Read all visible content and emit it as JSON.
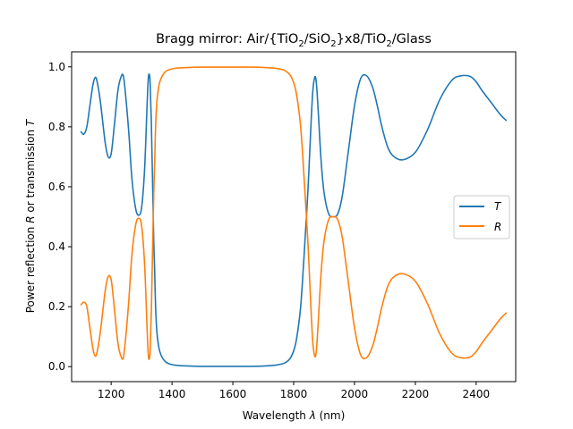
{
  "chart_data": {
    "type": "line",
    "title": {
      "prefix": "Bragg mirror: Air/{TiO",
      "sub1": "2",
      "mid1": "/SiO",
      "sub2": "2",
      "mid2": "}x8/TiO",
      "sub3": "2",
      "suffix": "/Glass"
    },
    "xlabel": {
      "before": "Wavelength ",
      "sym": "λ",
      "after": " (nm)"
    },
    "ylabel": {
      "a": "Power reflection ",
      "sym1": "R",
      "b": " or transmission ",
      "sym2": "T"
    },
    "xlim": [
      1070,
      2530
    ],
    "ylim": [
      -0.05,
      1.05
    ],
    "xticks": [
      1200,
      1400,
      1600,
      1800,
      2000,
      2200,
      2400
    ],
    "xtick_labels": [
      "1200",
      "1400",
      "1600",
      "1800",
      "2000",
      "2200",
      "2400"
    ],
    "yticks": [
      0.0,
      0.2,
      0.4,
      0.6,
      0.8,
      1.0
    ],
    "ytick_labels": [
      "0.0",
      "0.2",
      "0.4",
      "0.6",
      "0.8",
      "1.0"
    ],
    "legend_position": "center-right",
    "series": [
      {
        "name": "T",
        "color": "#1f77b4",
        "x": [
          1100,
          1110,
          1120,
          1130,
          1140,
          1148,
          1155,
          1165,
          1180,
          1190,
          1200,
          1210,
          1222,
          1232,
          1240,
          1248,
          1258,
          1268,
          1280,
          1290,
          1300,
          1310,
          1318,
          1322,
          1325,
          1328,
          1332,
          1336,
          1340,
          1343,
          1346,
          1350,
          1355,
          1360,
          1368,
          1380,
          1395,
          1410,
          1430,
          1460,
          1500,
          1550,
          1600,
          1650,
          1700,
          1740,
          1770,
          1790,
          1805,
          1815,
          1823,
          1830,
          1836,
          1842,
          1848,
          1853,
          1858,
          1863,
          1868,
          1872,
          1876,
          1882,
          1890,
          1900,
          1915,
          1930,
          1945,
          1960,
          1980,
          2000,
          2020,
          2040,
          2060,
          2075,
          2090,
          2110,
          2130,
          2160,
          2200,
          2240,
          2280,
          2320,
          2350,
          2380,
          2400,
          2420,
          2450,
          2480,
          2500
        ],
        "y": [
          0.785,
          0.775,
          0.8,
          0.87,
          0.94,
          0.965,
          0.945,
          0.88,
          0.75,
          0.7,
          0.71,
          0.8,
          0.92,
          0.965,
          0.97,
          0.9,
          0.78,
          0.63,
          0.53,
          0.505,
          0.53,
          0.66,
          0.87,
          0.96,
          0.975,
          0.95,
          0.82,
          0.62,
          0.42,
          0.32,
          0.2,
          0.12,
          0.075,
          0.05,
          0.03,
          0.015,
          0.008,
          0.005,
          0.003,
          0.002,
          0.001,
          0.001,
          0.001,
          0.001,
          0.002,
          0.005,
          0.012,
          0.03,
          0.07,
          0.13,
          0.2,
          0.3,
          0.4,
          0.5,
          0.61,
          0.72,
          0.83,
          0.92,
          0.96,
          0.965,
          0.93,
          0.83,
          0.69,
          0.58,
          0.51,
          0.5,
          0.51,
          0.57,
          0.72,
          0.87,
          0.96,
          0.97,
          0.93,
          0.87,
          0.8,
          0.73,
          0.7,
          0.69,
          0.715,
          0.79,
          0.89,
          0.955,
          0.97,
          0.968,
          0.95,
          0.92,
          0.88,
          0.84,
          0.82
        ]
      },
      {
        "name": "R",
        "color": "#ff7f0e",
        "x": [
          1100,
          1110,
          1120,
          1130,
          1140,
          1148,
          1155,
          1165,
          1180,
          1190,
          1200,
          1210,
          1222,
          1232,
          1240,
          1248,
          1258,
          1268,
          1280,
          1290,
          1300,
          1310,
          1318,
          1322,
          1325,
          1328,
          1332,
          1336,
          1340,
          1343,
          1346,
          1350,
          1355,
          1360,
          1368,
          1380,
          1395,
          1410,
          1430,
          1460,
          1500,
          1550,
          1600,
          1650,
          1700,
          1740,
          1770,
          1790,
          1805,
          1815,
          1823,
          1830,
          1836,
          1842,
          1848,
          1853,
          1858,
          1863,
          1868,
          1872,
          1876,
          1882,
          1890,
          1900,
          1915,
          1930,
          1945,
          1960,
          1980,
          2000,
          2020,
          2040,
          2060,
          2075,
          2090,
          2110,
          2130,
          2160,
          2200,
          2240,
          2280,
          2320,
          2350,
          2380,
          2400,
          2420,
          2450,
          2480,
          2500
        ],
        "y": [
          0.205,
          0.215,
          0.2,
          0.13,
          0.06,
          0.035,
          0.055,
          0.12,
          0.25,
          0.3,
          0.29,
          0.2,
          0.08,
          0.035,
          0.03,
          0.1,
          0.22,
          0.37,
          0.47,
          0.495,
          0.47,
          0.34,
          0.13,
          0.04,
          0.025,
          0.05,
          0.18,
          0.38,
          0.58,
          0.68,
          0.8,
          0.88,
          0.925,
          0.95,
          0.97,
          0.985,
          0.992,
          0.995,
          0.997,
          0.998,
          0.999,
          0.999,
          0.999,
          0.999,
          0.998,
          0.995,
          0.988,
          0.97,
          0.93,
          0.87,
          0.8,
          0.7,
          0.6,
          0.5,
          0.39,
          0.28,
          0.17,
          0.08,
          0.04,
          0.035,
          0.07,
          0.17,
          0.31,
          0.42,
          0.49,
          0.5,
          0.49,
          0.43,
          0.28,
          0.13,
          0.04,
          0.03,
          0.07,
          0.13,
          0.2,
          0.27,
          0.3,
          0.31,
          0.285,
          0.21,
          0.11,
          0.045,
          0.03,
          0.032,
          0.05,
          0.08,
          0.12,
          0.16,
          0.18
        ]
      }
    ]
  }
}
